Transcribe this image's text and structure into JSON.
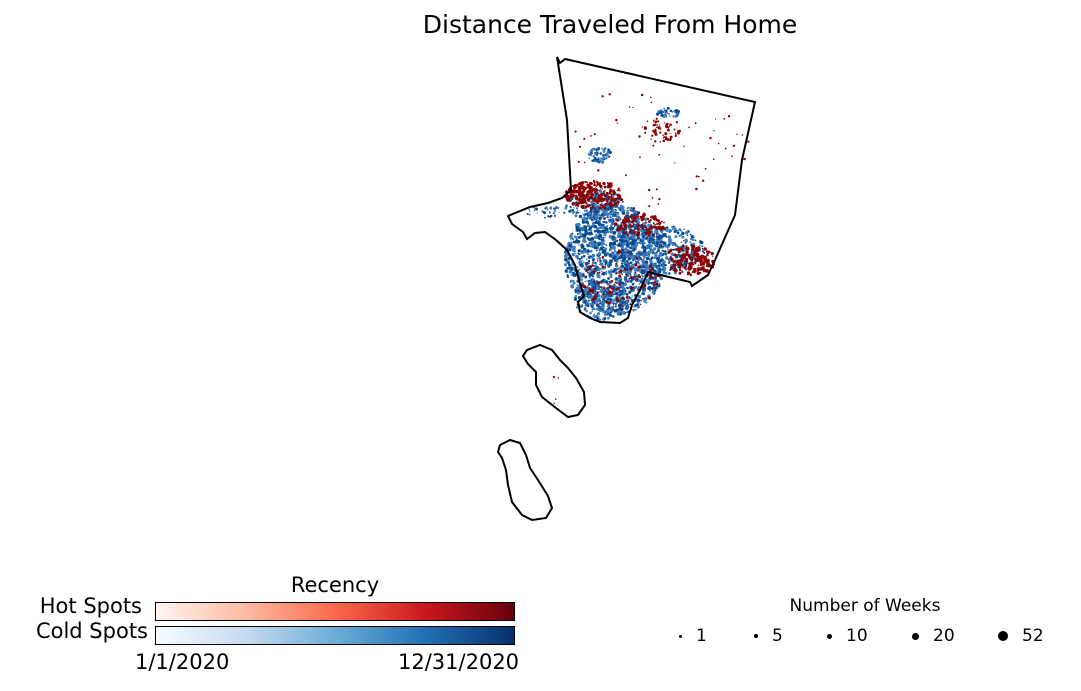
{
  "title": "Distance Traveled From Home",
  "legend": {
    "recency_title": "Recency",
    "hot_label": "Hot Spots",
    "cold_label": "Cold Spots",
    "start_label": "1/1/2020",
    "end_label": "12/31/2020",
    "hot_colors": [
      "#fff5f0",
      "#fcbba1",
      "#fb6a4a",
      "#cb181d",
      "#67000d"
    ],
    "cold_colors": [
      "#f7fbff",
      "#c6dbef",
      "#6baed6",
      "#2171b5",
      "#08306b"
    ]
  },
  "size_legend": {
    "title": "Number of Weeks",
    "items": [
      {
        "label": "1",
        "weeks": 1
      },
      {
        "label": "5",
        "weeks": 5
      },
      {
        "label": "10",
        "weeks": 10
      },
      {
        "label": "20",
        "weeks": 20
      },
      {
        "label": "52",
        "weeks": 52
      }
    ]
  },
  "map_colors": {
    "outline": "#000000",
    "hot": "#8b0000",
    "cold": "#0b4a8f",
    "cold_light": "#3f7fbf"
  }
}
